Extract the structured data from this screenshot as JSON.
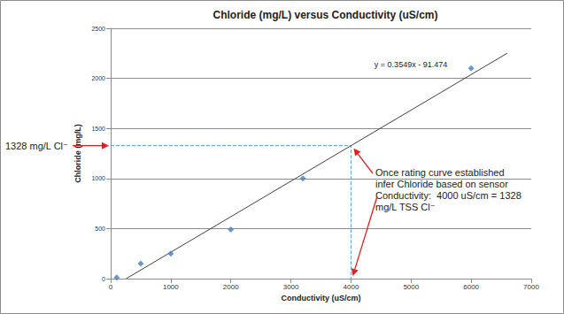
{
  "chart_data": {
    "type": "scatter",
    "title": "Chloride (mg/L) versus Conductivity (uS/cm)",
    "x_label": "Conductivity (uS/cm)",
    "y_label": "Chloride (mg/L)",
    "x": [
      100,
      500,
      1000,
      2000,
      3200,
      6000
    ],
    "values": [
      10,
      150,
      250,
      490,
      1000,
      2100
    ],
    "color": "#4a7ebb",
    "marker": "diamond",
    "xlim": [
      0,
      7000
    ],
    "xticks": [
      0,
      1000,
      2000,
      3000,
      4000,
      5000,
      6000,
      7000
    ],
    "ylim": [
      0,
      2500
    ],
    "yticks": [
      0,
      500,
      1000,
      1500,
      2000,
      2500
    ],
    "grid": "y",
    "trendline": {
      "equation": "y = 0.3549x - 91.474",
      "x": [
        258,
        6600
      ],
      "values": [
        0,
        2251
      ],
      "color": "#404040"
    },
    "readout": {
      "x": 4000,
      "y": 1328,
      "label": "1328 mg/L Cl⁻",
      "note": "Once rating curve established\ninfer Chloride based on sensor\nConductivity:  4000 uS/cm = 1328\nmg/L TSS Cl⁻",
      "color": "#e02020",
      "line_color": "#5b9bd5",
      "line_style": "dashed"
    }
  }
}
